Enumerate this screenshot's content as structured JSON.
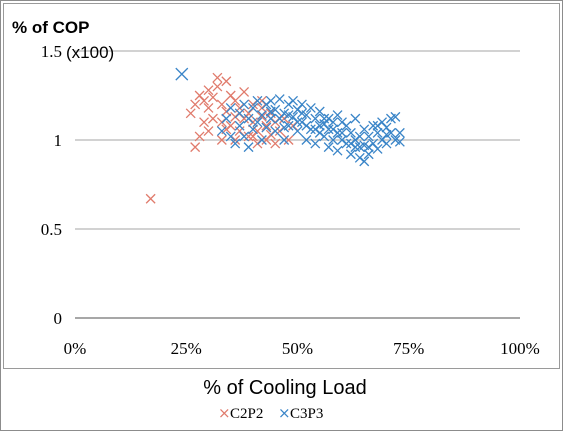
{
  "chart_data": {
    "type": "scatter",
    "title": "% of COP",
    "y_unit_label": "(x100)",
    "xlabel": "% of Cooling Load",
    "ylabel": "% of COP",
    "xlim": [
      0,
      1
    ],
    "ylim": [
      0,
      1.5
    ],
    "x_ticks": [
      "0%",
      "25%",
      "50%",
      "75%",
      "100%"
    ],
    "y_ticks": [
      "0",
      "0.5",
      "1",
      "1.5"
    ],
    "y_tick_values": [
      0,
      0.5,
      1,
      1.5
    ],
    "x_tick_values": [
      0,
      0.25,
      0.5,
      0.75,
      1
    ],
    "grid": "horizontal",
    "legend_position": "bottom",
    "series": [
      {
        "name": "C2P2",
        "color": "#e07b6c",
        "marker": "x",
        "points": [
          [
            0.17,
            0.67
          ],
          [
            0.27,
            0.96
          ],
          [
            0.28,
            1.02
          ],
          [
            0.26,
            1.15
          ],
          [
            0.27,
            1.2
          ],
          [
            0.28,
            1.25
          ],
          [
            0.29,
            1.22
          ],
          [
            0.3,
            1.18
          ],
          [
            0.3,
            1.28
          ],
          [
            0.31,
            1.24
          ],
          [
            0.32,
            1.35
          ],
          [
            0.32,
            1.3
          ],
          [
            0.33,
            1.2
          ],
          [
            0.33,
            1.1
          ],
          [
            0.34,
            1.33
          ],
          [
            0.34,
            1.16
          ],
          [
            0.35,
            1.25
          ],
          [
            0.35,
            1.08
          ],
          [
            0.36,
            1.22
          ],
          [
            0.36,
            1.13
          ],
          [
            0.37,
            1.05
          ],
          [
            0.37,
            1.18
          ],
          [
            0.38,
            1.12
          ],
          [
            0.38,
            1.27
          ],
          [
            0.39,
            1.02
          ],
          [
            0.39,
            1.15
          ],
          [
            0.4,
            1.1
          ],
          [
            0.4,
            1.2
          ],
          [
            0.41,
            1.05
          ],
          [
            0.41,
            0.98
          ],
          [
            0.42,
            1.13
          ],
          [
            0.42,
            1.22
          ],
          [
            0.43,
            1.08
          ],
          [
            0.43,
            1.0
          ],
          [
            0.44,
            1.15
          ],
          [
            0.44,
            1.03
          ],
          [
            0.45,
            1.1
          ],
          [
            0.45,
            0.98
          ],
          [
            0.46,
            1.05
          ],
          [
            0.47,
            1.12
          ],
          [
            0.48,
            1.0
          ],
          [
            0.49,
            1.08
          ],
          [
            0.3,
            1.05
          ],
          [
            0.31,
            1.12
          ],
          [
            0.33,
            1.0
          ],
          [
            0.29,
            1.1
          ],
          [
            0.36,
            1.0
          ],
          [
            0.4,
            1.02
          ],
          [
            0.42,
            1.18
          ],
          [
            0.34,
            1.06
          ]
        ]
      },
      {
        "name": "C3P3",
        "color": "#3a85c8",
        "marker": "x",
        "points": [
          [
            0.24,
            1.37
          ],
          [
            0.33,
            1.05
          ],
          [
            0.34,
            1.12
          ],
          [
            0.35,
            1.18
          ],
          [
            0.35,
            1.02
          ],
          [
            0.36,
            0.98
          ],
          [
            0.37,
            1.08
          ],
          [
            0.37,
            1.15
          ],
          [
            0.38,
            1.2
          ],
          [
            0.38,
            1.02
          ],
          [
            0.39,
            1.12
          ],
          [
            0.39,
            0.96
          ],
          [
            0.4,
            1.06
          ],
          [
            0.4,
            1.18
          ],
          [
            0.41,
            1.1
          ],
          [
            0.41,
            1.22
          ],
          [
            0.42,
            1.0
          ],
          [
            0.42,
            1.14
          ],
          [
            0.43,
            1.2
          ],
          [
            0.43,
            1.07
          ],
          [
            0.44,
            1.12
          ],
          [
            0.44,
            1.22
          ],
          [
            0.45,
            1.05
          ],
          [
            0.45,
            1.17
          ],
          [
            0.46,
            1.12
          ],
          [
            0.46,
            1.23
          ],
          [
            0.47,
            1.0
          ],
          [
            0.47,
            1.15
          ],
          [
            0.48,
            1.2
          ],
          [
            0.48,
            1.08
          ],
          [
            0.49,
            1.13
          ],
          [
            0.49,
            1.22
          ],
          [
            0.5,
            1.05
          ],
          [
            0.5,
            1.17
          ],
          [
            0.51,
            1.1
          ],
          [
            0.51,
            1.2
          ],
          [
            0.52,
            1.0
          ],
          [
            0.52,
            1.14
          ],
          [
            0.53,
            1.18
          ],
          [
            0.53,
            1.06
          ],
          [
            0.54,
            1.12
          ],
          [
            0.54,
            0.98
          ],
          [
            0.55,
            1.08
          ],
          [
            0.55,
            1.16
          ],
          [
            0.56,
            1.02
          ],
          [
            0.56,
            1.12
          ],
          [
            0.57,
            1.06
          ],
          [
            0.57,
            0.96
          ],
          [
            0.58,
            1.1
          ],
          [
            0.58,
            1.0
          ],
          [
            0.59,
            1.14
          ],
          [
            0.59,
            0.94
          ],
          [
            0.6,
            1.04
          ],
          [
            0.6,
            1.1
          ],
          [
            0.61,
            0.98
          ],
          [
            0.61,
            1.08
          ],
          [
            0.62,
            0.92
          ],
          [
            0.62,
            1.04
          ],
          [
            0.63,
            1.12
          ],
          [
            0.63,
            0.96
          ],
          [
            0.64,
            1.02
          ],
          [
            0.64,
            0.9
          ],
          [
            0.65,
            1.06
          ],
          [
            0.65,
            0.97
          ],
          [
            0.66,
            1.02
          ],
          [
            0.66,
            0.92
          ],
          [
            0.67,
            1.08
          ],
          [
            0.67,
            0.98
          ],
          [
            0.68,
            1.04
          ],
          [
            0.68,
            0.95
          ],
          [
            0.69,
            1.0
          ],
          [
            0.69,
            1.1
          ],
          [
            0.7,
            1.03
          ],
          [
            0.7,
            0.98
          ],
          [
            0.71,
            1.12
          ],
          [
            0.71,
            1.04
          ],
          [
            0.72,
            1.0
          ],
          [
            0.72,
            1.13
          ],
          [
            0.73,
            1.04
          ],
          [
            0.73,
            0.99
          ],
          [
            0.52,
            1.08
          ],
          [
            0.55,
            1.04
          ],
          [
            0.58,
            1.06
          ],
          [
            0.6,
            1.0
          ],
          [
            0.63,
            1.0
          ],
          [
            0.66,
            0.96
          ],
          [
            0.62,
            0.98
          ],
          [
            0.57,
            1.12
          ],
          [
            0.54,
            1.06
          ],
          [
            0.5,
            1.1
          ],
          [
            0.47,
            1.07
          ],
          [
            0.44,
            1.16
          ],
          [
            0.48,
            1.14
          ],
          [
            0.51,
            1.15
          ],
          [
            0.56,
            1.09
          ],
          [
            0.59,
            1.04
          ],
          [
            0.64,
            0.96
          ],
          [
            0.65,
            0.88
          ],
          [
            0.68,
            1.08
          ],
          [
            0.7,
            1.07
          ]
        ]
      }
    ]
  }
}
